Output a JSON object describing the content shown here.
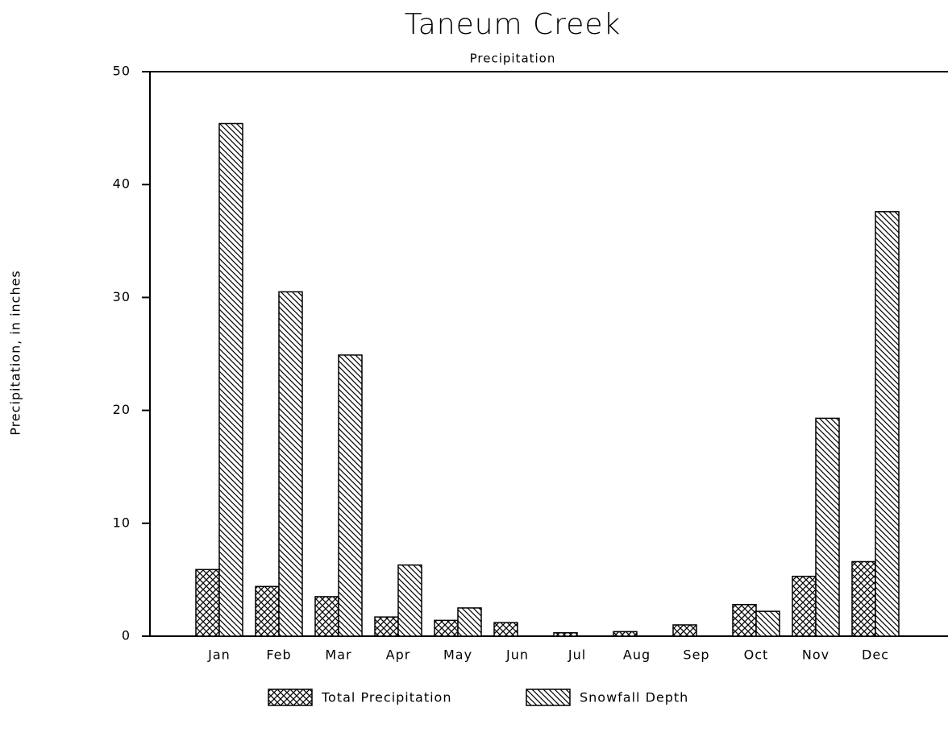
{
  "chart_data": {
    "type": "bar",
    "title": "Taneum Creek",
    "subtitle": "Precipitation",
    "y_label": "Precipitation, in inches",
    "categories": [
      "Jan",
      "Feb",
      "Mar",
      "Apr",
      "May",
      "Jun",
      "Jul",
      "Aug",
      "Sep",
      "Oct",
      "Nov",
      "Dec"
    ],
    "series": [
      {
        "name": "Total Precipitation",
        "color": "#000000",
        "pattern": "crosshatch",
        "values": [
          5.9,
          4.4,
          3.5,
          1.7,
          1.4,
          1.2,
          0.3,
          0.4,
          1.0,
          2.8,
          5.3,
          6.6
        ]
      },
      {
        "name": "Snowfall Depth",
        "color": "#000000",
        "pattern": "diagonal",
        "values": [
          45.4,
          30.5,
          24.9,
          6.3,
          2.5,
          0,
          0,
          0,
          0,
          2.2,
          19.3,
          37.6
        ]
      }
    ],
    "ylim": [
      0,
      50
    ],
    "yticks": [
      0,
      10,
      20,
      30,
      40,
      50
    ],
    "grid": false,
    "legend": "bottom"
  }
}
